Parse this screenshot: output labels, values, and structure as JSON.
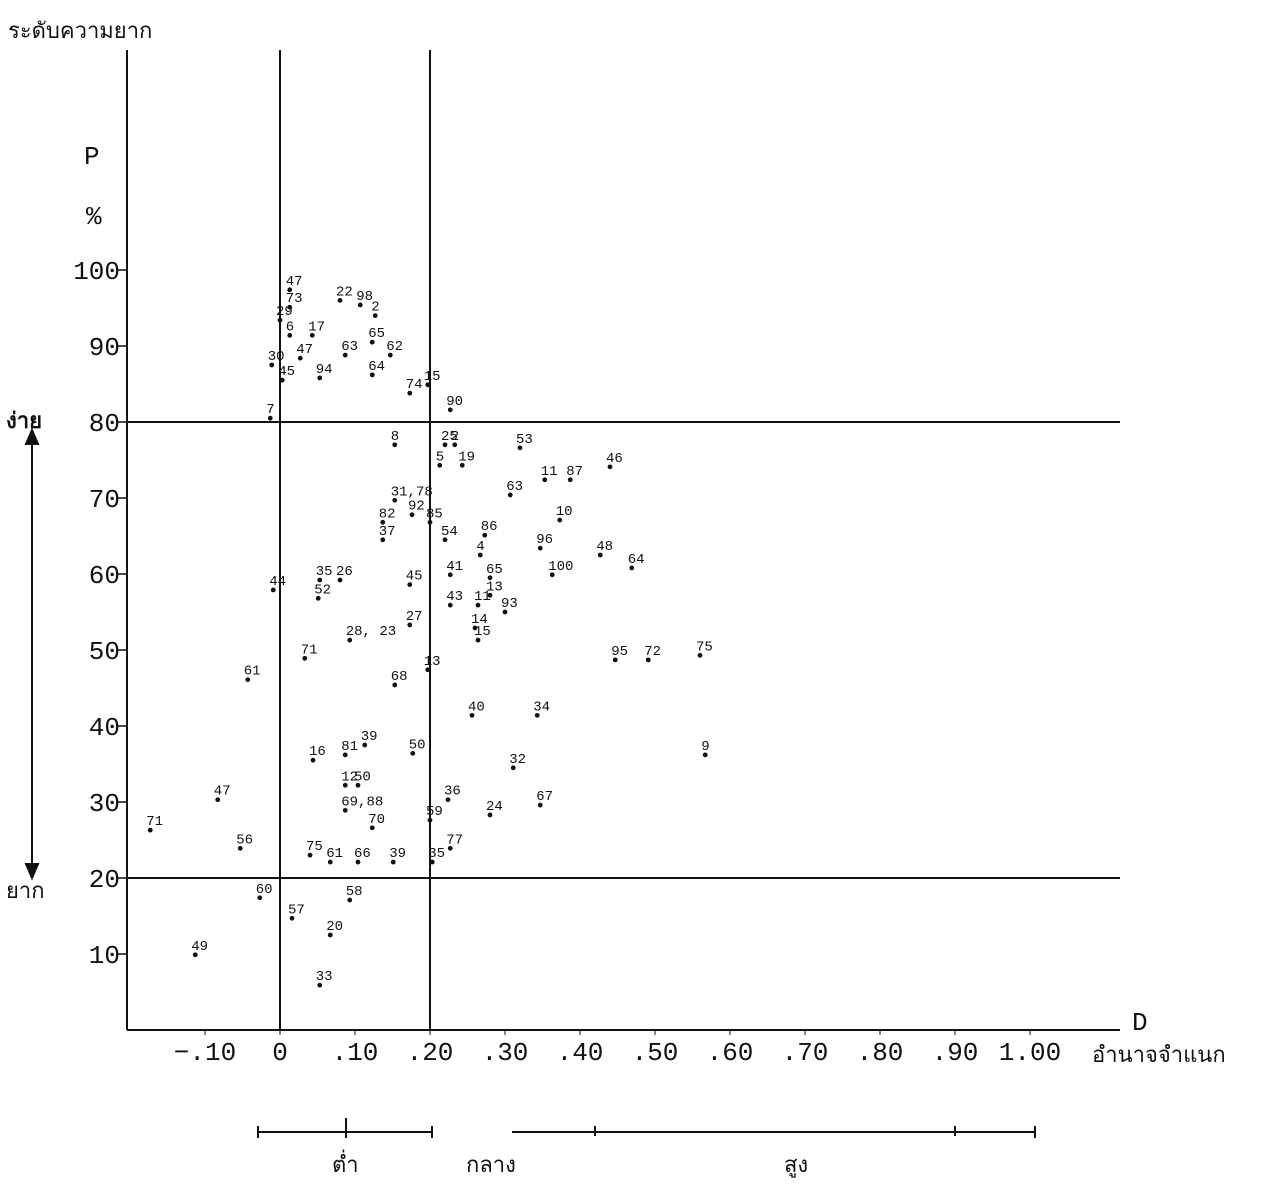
{
  "chart_data": {
    "type": "scatter",
    "y_axis_title": "ระดับความยาก",
    "y_symbol": "P",
    "y_unit": "%",
    "y_top_label": "ง่าย",
    "y_bottom_label": "ยาก",
    "x_symbol": "D",
    "x_axis_title": "อำนาจจำแนก",
    "ranges": [
      "ต่ำ",
      "กลาง",
      "สูง"
    ],
    "xlim": [
      -0.2,
      1.12
    ],
    "ylim": [
      0,
      125
    ],
    "xticks": [
      {
        "value": -0.1,
        "label": "−.10"
      },
      0,
      {
        "value": 0.1,
        "label": ".10"
      },
      {
        "value": 0.2,
        "label": ".20"
      },
      {
        "value": 0.3,
        "label": ".30"
      },
      {
        "value": 0.4,
        "label": ".40"
      },
      {
        "value": 0.5,
        "label": ".50"
      },
      {
        "value": 0.6,
        "label": ".60"
      },
      {
        "value": 0.7,
        "label": ".70"
      },
      {
        "value": 0.8,
        "label": ".80"
      },
      {
        "value": 0.9,
        "label": ".90"
      },
      {
        "value": 1.0,
        "label": "1.00"
      }
    ],
    "yticks": [
      10,
      20,
      30,
      40,
      50,
      60,
      70,
      80,
      90,
      100
    ],
    "vlines": [
      0,
      0.2
    ],
    "hlines": [
      20,
      80
    ],
    "color": "#111111",
    "series": [
      {
        "x": [
          0.013,
          0.013,
          0.08,
          0.107,
          0.127,
          0,
          0.013,
          0.043,
          0.123,
          -0.011,
          0.027,
          0.087,
          0.147,
          0.003,
          0.053,
          0.123,
          0.173,
          0.197,
          0.227,
          -0.013,
          0.153,
          0.22,
          0.233,
          0.32,
          0.213,
          0.243,
          0.44,
          0.353,
          0.387,
          0.153,
          0.307,
          0.176,
          0.137,
          0.373,
          0.2,
          0.137,
          0.22,
          0.273,
          0.347,
          0.267,
          0.427,
          0.469,
          0.227,
          0.28,
          0.363,
          0.053,
          0.08,
          0.173,
          -0.009,
          0.051,
          0.227,
          0.264,
          0.28,
          0.3,
          0.173,
          0.26,
          0.093,
          0.264,
          0.447,
          0.491,
          0.56,
          0.033,
          0.197,
          -0.043,
          0.153,
          0.256,
          0.343,
          0.044,
          0.087,
          0.113,
          0.177,
          0.311,
          0.567,
          0.087,
          0.104,
          -0.083,
          -0.173,
          0.224,
          0.347,
          0.087,
          0.2,
          0.28,
          0.123,
          -0.053,
          0.04,
          0.067,
          0.104,
          0.151,
          0.227,
          0.203,
          -0.027,
          0.093,
          0.016,
          0.067,
          -0.113,
          0.053
        ],
        "values": [
          97.4,
          95.1,
          96,
          95.4,
          94,
          93.4,
          91.4,
          91.4,
          90.5,
          87.5,
          88.4,
          88.8,
          88.8,
          85.5,
          85.8,
          86.2,
          83.8,
          84.9,
          81.6,
          80.5,
          77,
          77,
          77,
          76.6,
          74.3,
          74.3,
          74.1,
          72.4,
          72.4,
          69.7,
          70.4,
          67.8,
          66.8,
          67.1,
          66.8,
          64.5,
          64.5,
          65.1,
          63.4,
          62.5,
          62.5,
          60.8,
          59.9,
          59.5,
          59.9,
          59.2,
          59.2,
          58.6,
          57.9,
          56.8,
          55.9,
          55.9,
          57.2,
          55,
          53.3,
          52.9,
          51.3,
          51.3,
          48.7,
          48.7,
          49.3,
          48.9,
          47.4,
          46.1,
          45.4,
          41.4,
          41.4,
          35.5,
          36.2,
          37.5,
          36.4,
          34.5,
          36.2,
          32.2,
          32.2,
          30.3,
          26.3,
          30.3,
          29.6,
          28.9,
          27.6,
          28.3,
          26.6,
          23.9,
          23,
          22.1,
          22.1,
          22.1,
          23.9,
          22.1,
          17.4,
          17.1,
          14.7,
          12.5,
          9.9,
          5.9
        ],
        "labels": [
          "47",
          "73",
          "22",
          "98",
          "2",
          "29",
          "6",
          "17",
          "65",
          "30",
          "47",
          "63",
          "62",
          "45",
          "94",
          "64",
          "74",
          "15",
          "90",
          "7",
          "8",
          "25",
          "2",
          "53",
          "5",
          "19",
          "46",
          "11",
          "87",
          "31,78",
          "63",
          "92",
          "82",
          "10",
          "85",
          "37",
          "54",
          "86",
          "96",
          "4",
          "48",
          "64",
          "41",
          "65",
          "100",
          "35",
          "26",
          "45",
          "44",
          "52",
          "43",
          "11",
          "13",
          "93",
          "27",
          "14",
          "28, 23",
          "15",
          "95",
          "72",
          "75",
          "71",
          "13",
          "61",
          "68",
          "40",
          "34",
          "16",
          "81",
          "39",
          "50",
          "32",
          "9",
          "12",
          "50",
          "47",
          "71",
          "36",
          "67",
          "69,88",
          "59",
          "24",
          "70",
          "56",
          "75",
          "61",
          "66",
          "39",
          "77",
          "35",
          "60",
          "58",
          "57",
          "20",
          "49",
          "33"
        ]
      }
    ]
  }
}
